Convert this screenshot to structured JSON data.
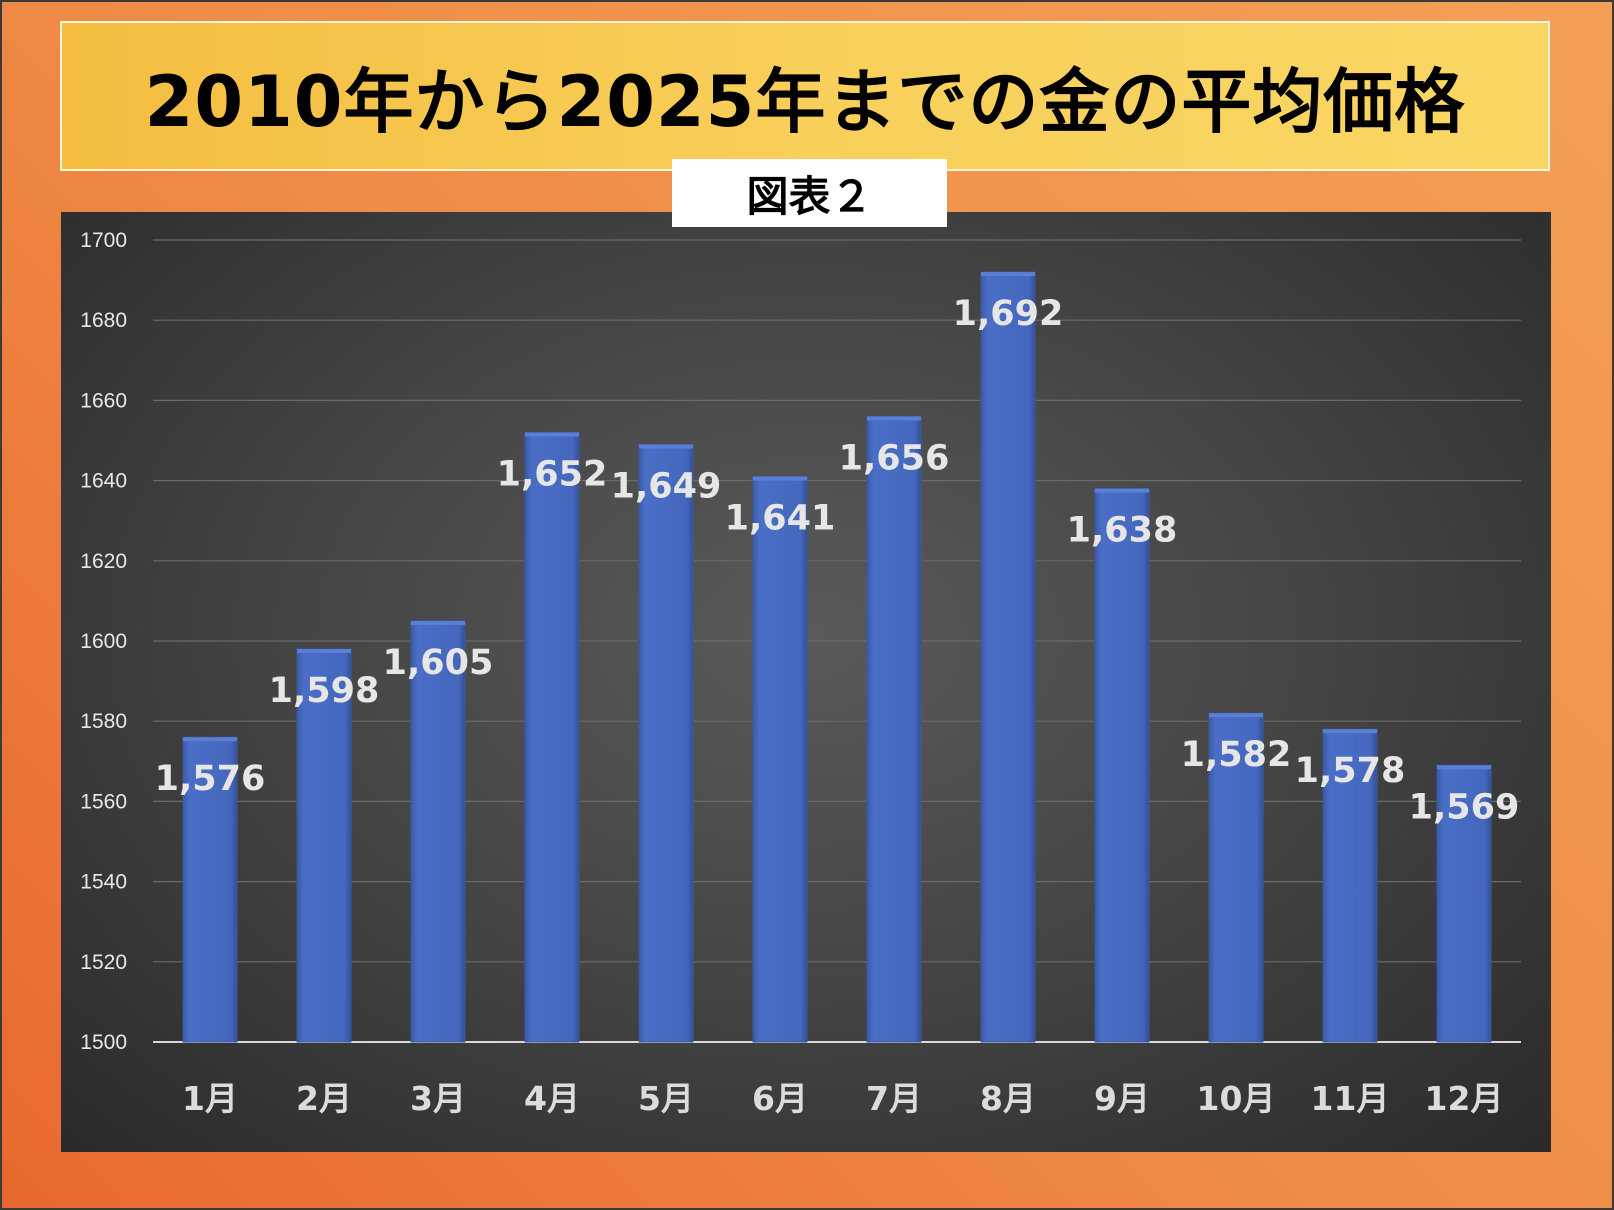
{
  "title": "2010年から2025年までの金の平均価格",
  "subtitle": "図表２",
  "colors": {
    "bar": "#4568be",
    "bar_edge": "#3a589f",
    "background_outer": "#ee8040",
    "title_bg": "#f7cc55",
    "gridline": "#6a6a6a",
    "axis_line": "#d8d8d8"
  },
  "chart_data": {
    "type": "bar",
    "title": "2010年から2025年までの金の平均価格",
    "subtitle": "図表２",
    "xlabel": "",
    "ylabel": "",
    "categories": [
      "1月",
      "2月",
      "3月",
      "4月",
      "5月",
      "6月",
      "7月",
      "8月",
      "9月",
      "10月",
      "11月",
      "12月"
    ],
    "values": [
      1576,
      1598,
      1605,
      1652,
      1649,
      1641,
      1656,
      1692,
      1638,
      1582,
      1578,
      1569
    ],
    "value_labels": [
      "1,576",
      "1,598",
      "1,605",
      "1,652",
      "1,649",
      "1,641",
      "1,656",
      "1,692",
      "1,638",
      "1,582",
      "1,578",
      "1,569"
    ],
    "ylim": [
      1500,
      1700
    ],
    "yticks": [
      1500,
      1520,
      1540,
      1560,
      1580,
      1600,
      1620,
      1640,
      1660,
      1680,
      1700
    ],
    "grid": true,
    "legend": "none"
  }
}
